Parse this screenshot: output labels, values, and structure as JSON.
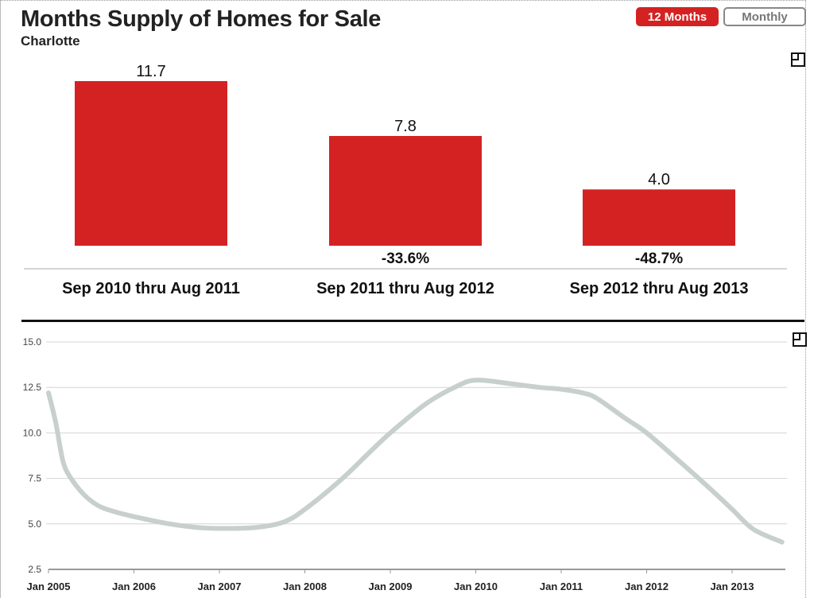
{
  "header": {
    "title": "Months Supply of Homes for Sale",
    "subtitle": "Charlotte"
  },
  "toggle": {
    "active_label": "12 Months",
    "inactive_label": "Monthly"
  },
  "icons": {
    "expand": "expand-icon"
  },
  "colors": {
    "bar": "#d42222",
    "line": "#c8d0cc"
  },
  "chart_data": [
    {
      "type": "bar",
      "categories": [
        "Sep 2010 thru Aug 2011",
        "Sep 2011 thru Aug 2012",
        "Sep 2012 thru Aug 2013"
      ],
      "values": [
        11.7,
        7.8,
        4.0
      ],
      "value_labels": [
        "11.7",
        "7.8",
        "4.0"
      ],
      "change_labels": [
        "",
        "-33.6%",
        "-48.7%"
      ]
    },
    {
      "type": "line",
      "ylim": [
        2.5,
        15.0
      ],
      "yticks": [
        "2.5",
        "5.0",
        "7.5",
        "10.0",
        "12.5",
        "15.0"
      ],
      "xticks": [
        "Jan 2005",
        "Jan 2006",
        "Jan 2007",
        "Jan 2008",
        "Jan 2009",
        "Jan 2010",
        "Jan 2011",
        "Jan 2012",
        "Jan 2013"
      ],
      "grid": true,
      "x": [
        "2005-01",
        "2005-02",
        "2005-03",
        "2005-04",
        "2005-06",
        "2005-08",
        "2005-10",
        "2006-01",
        "2006-06",
        "2006-10",
        "2007-01",
        "2007-06",
        "2007-10",
        "2008-01",
        "2008-06",
        "2008-10",
        "2009-01",
        "2009-06",
        "2009-10",
        "2010-01",
        "2010-06",
        "2010-10",
        "2011-01",
        "2011-04",
        "2011-06",
        "2011-10",
        "2012-01",
        "2012-06",
        "2012-10",
        "2013-01",
        "2013-04",
        "2013-08"
      ],
      "y": [
        12.2,
        10.6,
        8.5,
        7.6,
        6.6,
        6.0,
        5.7,
        5.4,
        5.0,
        4.8,
        4.75,
        4.8,
        5.1,
        5.8,
        7.4,
        8.9,
        10.0,
        11.6,
        12.5,
        12.9,
        12.7,
        12.5,
        12.4,
        12.2,
        11.9,
        10.8,
        10.0,
        8.3,
        6.9,
        5.8,
        4.7,
        4.0
      ]
    }
  ]
}
